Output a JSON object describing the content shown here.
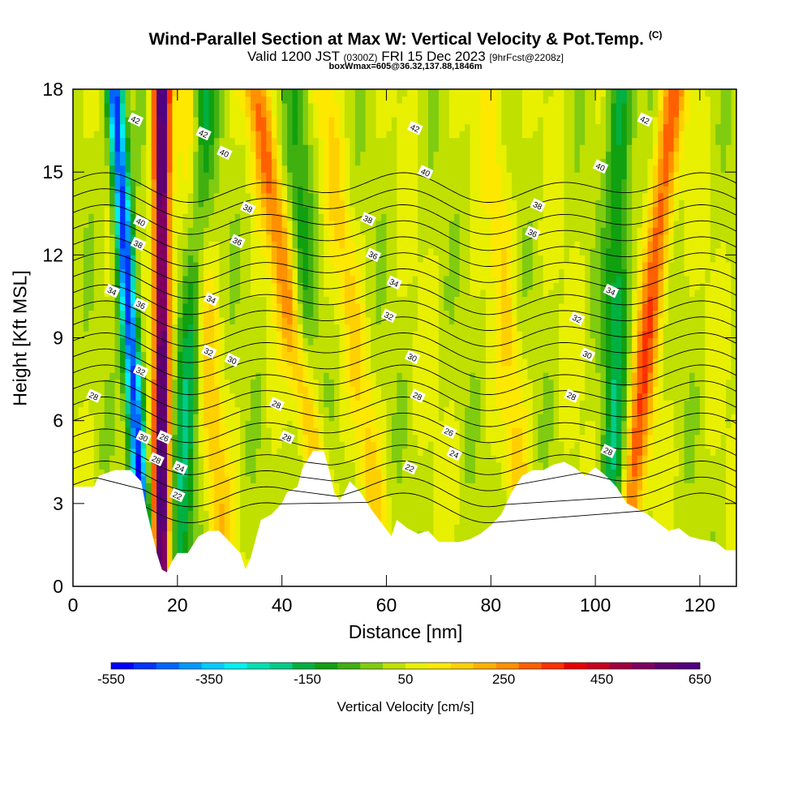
{
  "title": "Wind-Parallel Section at Max W: Vertical Velocity & Pot.Temp.",
  "title_mark": "(C)",
  "subtitle": {
    "prefix": "Valid 1200 JST",
    "utc": "(0300Z)",
    "date": "FRI 15 Dec 2023",
    "fcst": "[9hrFcst@2208z]"
  },
  "subtitle2": "boxWmax=605@36.32,137.88,1846m",
  "chart_data": {
    "type": "heatmap",
    "xlabel": "Distance [nm]",
    "ylabel": "Height [Kft MSL]",
    "xlim": [
      0,
      127
    ],
    "ylim": [
      0,
      18
    ],
    "x_ticks": [
      0,
      20,
      40,
      60,
      80,
      100,
      120
    ],
    "y_ticks": [
      0,
      3,
      6,
      9,
      12,
      15,
      18
    ],
    "colorbar": {
      "label": "Vertical Velocity [cm/s]",
      "tick_labels": [
        -550,
        -350,
        -150,
        50,
        250,
        450,
        650
      ],
      "range": [
        -550,
        650
      ],
      "colors": [
        "#0000ff",
        "#0033ff",
        "#0066ff",
        "#0099ff",
        "#00ccff",
        "#00f0f0",
        "#00e0b0",
        "#00cc88",
        "#00b040",
        "#10a010",
        "#40b010",
        "#80cc10",
        "#c0e000",
        "#e8f000",
        "#ffe800",
        "#ffd000",
        "#ffb000",
        "#ff9000",
        "#ff6000",
        "#ff3000",
        "#e80000",
        "#c80020",
        "#a00040",
        "#800060",
        "#600070",
        "#500080"
      ]
    },
    "updrafts": [
      {
        "x_base": 17,
        "x_top": 17,
        "w": 600
      },
      {
        "x_base": 50,
        "x_top": 35,
        "w": 230
      },
      {
        "x_base": 105,
        "x_top": 115,
        "w": 260
      },
      {
        "x_base": 29,
        "x_top": 22,
        "w": 120
      },
      {
        "x_base": 60,
        "x_top": 48,
        "w": 90
      },
      {
        "x_base": 87,
        "x_top": 80,
        "w": 90
      }
    ],
    "downdrafts": [
      {
        "x_base": 14,
        "x_top": 8,
        "w": -550
      },
      {
        "x_base": 20,
        "x_top": 25,
        "w": -200
      },
      {
        "x_base": 103,
        "x_top": 105,
        "w": -200
      },
      {
        "x_base": 45,
        "x_top": 43,
        "w": -120
      }
    ],
    "terrain": [
      [
        0,
        3.6
      ],
      [
        4,
        3.6
      ],
      [
        5,
        4.0
      ],
      [
        8,
        4.2
      ],
      [
        11,
        4.2
      ],
      [
        13,
        3.8
      ],
      [
        14,
        2.8
      ],
      [
        15,
        2.0
      ],
      [
        16,
        1.2
      ],
      [
        17,
        0.6
      ],
      [
        18,
        0.5
      ],
      [
        19,
        0.9
      ],
      [
        20,
        1.2
      ],
      [
        22,
        1.2
      ],
      [
        24,
        1.8
      ],
      [
        26,
        2.0
      ],
      [
        28,
        2.0
      ],
      [
        30,
        1.6
      ],
      [
        32,
        1.2
      ],
      [
        33,
        0.6
      ],
      [
        34,
        1.0
      ],
      [
        36,
        2.4
      ],
      [
        38,
        2.6
      ],
      [
        40,
        3.0
      ],
      [
        41,
        3.4
      ],
      [
        43,
        3.6
      ],
      [
        44,
        4.3
      ],
      [
        46,
        4.9
      ],
      [
        48,
        4.9
      ],
      [
        49,
        4.2
      ],
      [
        50,
        3.4
      ],
      [
        51,
        3.1
      ],
      [
        52,
        3.4
      ],
      [
        53,
        3.8
      ],
      [
        55,
        3.4
      ],
      [
        57,
        2.8
      ],
      [
        59,
        2.3
      ],
      [
        61,
        1.8
      ],
      [
        62,
        2.4
      ],
      [
        64,
        2.1
      ],
      [
        66,
        1.9
      ],
      [
        68,
        2.0
      ],
      [
        70,
        1.6
      ],
      [
        72,
        1.6
      ],
      [
        74,
        1.6
      ],
      [
        76,
        1.7
      ],
      [
        78,
        1.9
      ],
      [
        80,
        2.2
      ],
      [
        82,
        2.6
      ],
      [
        84,
        3.4
      ],
      [
        86,
        4.0
      ],
      [
        88,
        4.2
      ],
      [
        90,
        4.2
      ],
      [
        92,
        4.4
      ],
      [
        94,
        4.5
      ],
      [
        96,
        4.3
      ],
      [
        98,
        4.0
      ],
      [
        100,
        4.3
      ],
      [
        102,
        4.0
      ],
      [
        104,
        3.6
      ],
      [
        106,
        3.0
      ],
      [
        108,
        2.8
      ],
      [
        110,
        2.6
      ],
      [
        112,
        2.3
      ],
      [
        114,
        2.0
      ],
      [
        116,
        2.1
      ],
      [
        118,
        1.8
      ],
      [
        120,
        1.7
      ],
      [
        123,
        1.6
      ],
      [
        125,
        1.3
      ],
      [
        127,
        1.3
      ]
    ],
    "theta_levels": [
      22,
      23,
      24,
      25,
      26,
      27,
      28,
      29,
      30,
      31,
      32,
      33,
      34,
      35,
      36,
      37,
      38,
      39,
      40,
      41,
      42
    ],
    "theta_labels": [
      {
        "x": 12.0,
        "y": 16.9,
        "v": "42"
      },
      {
        "x": 25.0,
        "y": 16.4,
        "v": "42"
      },
      {
        "x": 29.0,
        "y": 15.7,
        "v": "40"
      },
      {
        "x": 65.5,
        "y": 16.6,
        "v": "42"
      },
      {
        "x": 67.5,
        "y": 15.0,
        "v": "40"
      },
      {
        "x": 101.0,
        "y": 15.2,
        "v": "40"
      },
      {
        "x": 109.5,
        "y": 16.9,
        "v": "42"
      },
      {
        "x": 33.5,
        "y": 13.7,
        "v": "38"
      },
      {
        "x": 56.5,
        "y": 13.3,
        "v": "38"
      },
      {
        "x": 89.0,
        "y": 13.8,
        "v": "38"
      },
      {
        "x": 88.0,
        "y": 12.8,
        "v": "36"
      },
      {
        "x": 13.0,
        "y": 13.2,
        "v": "40"
      },
      {
        "x": 12.5,
        "y": 12.4,
        "v": "38"
      },
      {
        "x": 31.5,
        "y": 12.5,
        "v": "36"
      },
      {
        "x": 57.5,
        "y": 12.0,
        "v": "36"
      },
      {
        "x": 61.5,
        "y": 11.0,
        "v": "34"
      },
      {
        "x": 7.5,
        "y": 10.7,
        "v": "34"
      },
      {
        "x": 13.0,
        "y": 10.2,
        "v": "36"
      },
      {
        "x": 26.5,
        "y": 10.4,
        "v": "34"
      },
      {
        "x": 103.0,
        "y": 10.7,
        "v": "34"
      },
      {
        "x": 60.5,
        "y": 9.8,
        "v": "32"
      },
      {
        "x": 96.5,
        "y": 9.7,
        "v": "32"
      },
      {
        "x": 26.0,
        "y": 8.5,
        "v": "32"
      },
      {
        "x": 30.5,
        "y": 8.2,
        "v": "30"
      },
      {
        "x": 13.0,
        "y": 7.8,
        "v": "32"
      },
      {
        "x": 65.0,
        "y": 8.3,
        "v": "30"
      },
      {
        "x": 98.5,
        "y": 8.4,
        "v": "30"
      },
      {
        "x": 4.0,
        "y": 6.9,
        "v": "28"
      },
      {
        "x": 39.0,
        "y": 6.6,
        "v": "28"
      },
      {
        "x": 66.0,
        "y": 6.9,
        "v": "28"
      },
      {
        "x": 95.5,
        "y": 6.9,
        "v": "28"
      },
      {
        "x": 13.5,
        "y": 5.4,
        "v": "30"
      },
      {
        "x": 17.5,
        "y": 5.4,
        "v": "26"
      },
      {
        "x": 41.0,
        "y": 5.4,
        "v": "28"
      },
      {
        "x": 72.0,
        "y": 5.6,
        "v": "26"
      },
      {
        "x": 73.0,
        "y": 4.8,
        "v": "24"
      },
      {
        "x": 102.5,
        "y": 4.9,
        "v": "28"
      },
      {
        "x": 16.0,
        "y": 4.6,
        "v": "28"
      },
      {
        "x": 20.5,
        "y": 4.3,
        "v": "24"
      },
      {
        "x": 64.5,
        "y": 4.3,
        "v": "22"
      },
      {
        "x": 20.0,
        "y": 3.3,
        "v": "22"
      }
    ]
  }
}
